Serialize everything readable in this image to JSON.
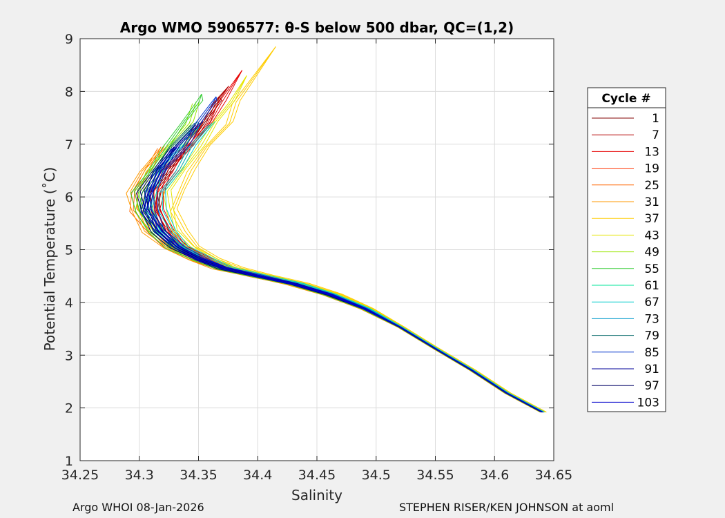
{
  "chart_data": {
    "type": "line",
    "title": "Argo WMO 5906577: θ-S below 500 dbar,  QC=(1,2)",
    "xlabel": "Salinity",
    "ylabel": "Potential Temperature (˚C)",
    "xlim": [
      34.25,
      34.65
    ],
    "ylim": [
      1,
      9
    ],
    "xticks": [
      "34.25",
      "34.3",
      "34.35",
      "34.4",
      "34.45",
      "34.5",
      "34.55",
      "34.6",
      "34.65"
    ],
    "yticks": [
      "1",
      "2",
      "3",
      "4",
      "5",
      "6",
      "7",
      "8",
      "9"
    ],
    "grid": true,
    "legend_title": "Cycle #",
    "legend_position": "right",
    "mean_profile": {
      "salinity": [
        34.64,
        34.61,
        34.58,
        34.55,
        34.52,
        34.49,
        34.46,
        34.43,
        34.4,
        34.37,
        34.35,
        34.33,
        34.315,
        34.305,
        34.305,
        34.315,
        34.33,
        34.345,
        34.355
      ],
      "temperature": [
        1.92,
        2.28,
        2.72,
        3.12,
        3.53,
        3.88,
        4.15,
        4.35,
        4.5,
        4.65,
        4.82,
        5.05,
        5.35,
        5.75,
        6.1,
        6.5,
        6.95,
        7.4,
        7.8
      ]
    },
    "series": [
      {
        "name": "1",
        "color": "#800000",
        "salinity_offset": 0.008,
        "top_temperature": 7.9
      },
      {
        "name": "7",
        "color": "#b20000",
        "salinity_offset": 0.01,
        "top_temperature": 8.1
      },
      {
        "name": "13",
        "color": "#e60000",
        "salinity_offset": 0.012,
        "top_temperature": 8.4
      },
      {
        "name": "19",
        "color": "#ff3300",
        "salinity_offset": 0.006,
        "top_temperature": 7.7
      },
      {
        "name": "25",
        "color": "#ff6600",
        "salinity_offset": -0.008,
        "top_temperature": 7.2
      },
      {
        "name": "31",
        "color": "#ff9900",
        "salinity_offset": -0.01,
        "top_temperature": 7.0
      },
      {
        "name": "37",
        "color": "#ffcc00",
        "salinity_offset": 0.025,
        "top_temperature": 8.85
      },
      {
        "name": "43",
        "color": "#e6e600",
        "salinity_offset": 0.018,
        "top_temperature": 8.3
      },
      {
        "name": "49",
        "color": "#99e600",
        "salinity_offset": -0.004,
        "top_temperature": 7.8
      },
      {
        "name": "55",
        "color": "#33cc33",
        "salinity_offset": -0.006,
        "top_temperature": 7.95
      },
      {
        "name": "61",
        "color": "#00e699",
        "salinity_offset": 0.004,
        "top_temperature": 7.4
      },
      {
        "name": "67",
        "color": "#00cccc",
        "salinity_offset": 0.014,
        "top_temperature": 7.6
      },
      {
        "name": "73",
        "color": "#0099cc",
        "salinity_offset": 0.002,
        "top_temperature": 7.3
      },
      {
        "name": "79",
        "color": "#006666",
        "salinity_offset": 0.0,
        "top_temperature": 7.5
      },
      {
        "name": "85",
        "color": "#0033cc",
        "salinity_offset": 0.006,
        "top_temperature": 7.9
      },
      {
        "name": "91",
        "color": "#000099",
        "salinity_offset": 0.003,
        "top_temperature": 7.7
      },
      {
        "name": "97",
        "color": "#000066",
        "salinity_offset": -0.002,
        "top_temperature": 7.2
      },
      {
        "name": "103",
        "color": "#0000cc",
        "salinity_offset": 0.001,
        "top_temperature": 7.0
      }
    ]
  },
  "footer": {
    "left": "Argo WHOI 08-Jan-2026",
    "right": "STEPHEN RISER/KEN JOHNSON at aoml"
  }
}
